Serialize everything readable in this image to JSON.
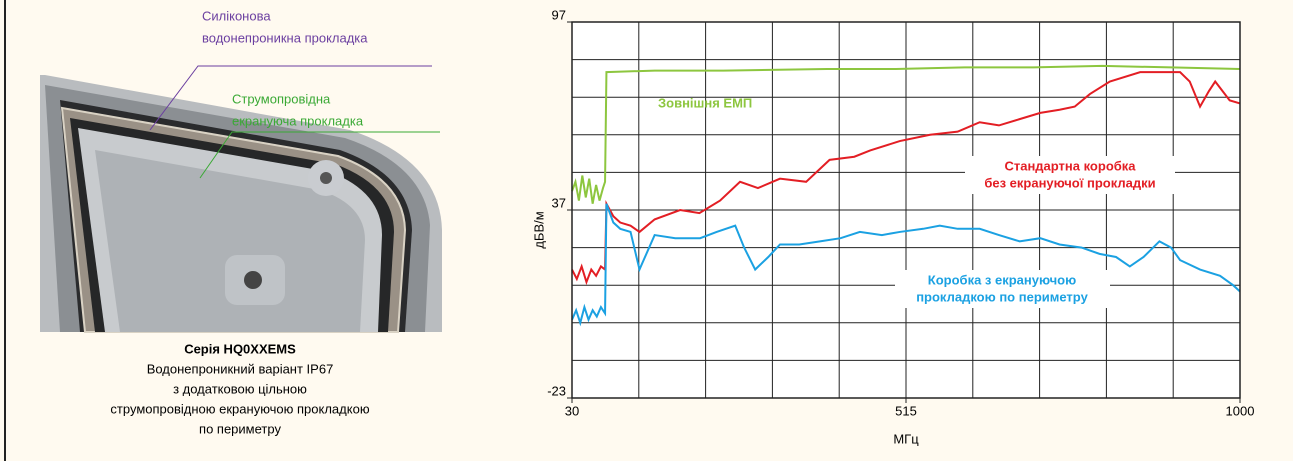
{
  "photo_labels": {
    "silicone": [
      "Силіконова",
      "водонепроникна прокладка"
    ],
    "conductive": [
      "Струмопровідна",
      "екрануюча прокладка"
    ]
  },
  "caption": {
    "title": "Серія HQ0XXEMS",
    "lines": [
      "Водонепроникний варіант IP67",
      "з додатковою цільною",
      "струмопровідною екрануючою прокладкою",
      "по периметру"
    ]
  },
  "chart_data": {
    "type": "line",
    "y_label": "дБВ/м",
    "x_label": "МГц",
    "xlim": [
      30,
      1000
    ],
    "xticks": [
      30,
      515,
      1000
    ],
    "ylim": [
      -23,
      97
    ],
    "yticks": [
      -23,
      37,
      97
    ],
    "series": [
      {
        "name": "Зовнішня ЕМП",
        "color": "#8dc63f",
        "x": [
          30,
          35,
          40,
          45,
          50,
          55,
          60,
          65,
          70,
          75,
          78,
          80,
          150,
          250,
          400,
          500,
          600,
          700,
          800,
          900,
          1000
        ],
        "values": [
          43,
          46,
          40,
          48,
          41,
          47,
          39,
          45,
          40,
          44,
          46,
          81,
          81.5,
          81.5,
          82,
          82,
          82.5,
          82.5,
          83,
          82.5,
          82
        ]
      },
      {
        "name": "Стандартна коробка без екрануючої прокладки",
        "color": "#e31e24",
        "x": [
          30,
          37,
          44,
          51,
          58,
          65,
          72,
          78,
          80,
          90,
          100,
          115,
          128,
          150,
          187,
          215,
          245,
          274,
          300,
          332,
          370,
          404,
          440,
          463,
          506,
          550,
          590,
          622,
          650,
          680,
          710,
          738,
          760,
          782,
          811,
          855,
          913,
          927,
          942,
          955,
          964,
          985,
          1000
        ],
        "values": [
          18,
          15,
          19,
          14,
          18,
          16,
          19,
          18,
          39,
          35,
          33,
          32,
          30,
          34,
          37,
          36,
          40,
          46,
          44,
          47,
          46,
          53,
          54,
          56,
          59,
          61,
          62,
          65,
          64,
          66,
          68,
          69,
          70,
          74,
          78,
          81,
          81,
          78,
          70,
          75,
          78,
          72,
          71
        ]
      },
      {
        "name": "Коробка з екрануючою прокладкою по периметру",
        "color": "#1ba1e2",
        "x": [
          30,
          36,
          42,
          48,
          54,
          60,
          66,
          72,
          78,
          80,
          90,
          100,
          115,
          128,
          150,
          180,
          216,
          240,
          267,
          280,
          296,
          315,
          332,
          360,
          390,
          420,
          448,
          480,
          506,
          540,
          564,
          590,
          622,
          650,
          680,
          710,
          738,
          770,
          796,
          820,
          840,
          860,
          883,
          900,
          913,
          942,
          971,
          990,
          1000
        ],
        "values": [
          2,
          5,
          1,
          6,
          2,
          5,
          3,
          6,
          4,
          39,
          33,
          31,
          30,
          18,
          29,
          28,
          28,
          30,
          32,
          25,
          18,
          22,
          26,
          26,
          27,
          28,
          30,
          29,
          30,
          31,
          32,
          31,
          31,
          29,
          27,
          28,
          26,
          25,
          23,
          22,
          19,
          22,
          27,
          25,
          21,
          18,
          16,
          13,
          11
        ]
      }
    ],
    "annotations": {
      "standard": [
        "Стандартна коробка",
        "без екрануючої прокладки"
      ],
      "shielded": [
        "Коробка з екрануючою",
        "прокладкою по периметру"
      ]
    }
  }
}
